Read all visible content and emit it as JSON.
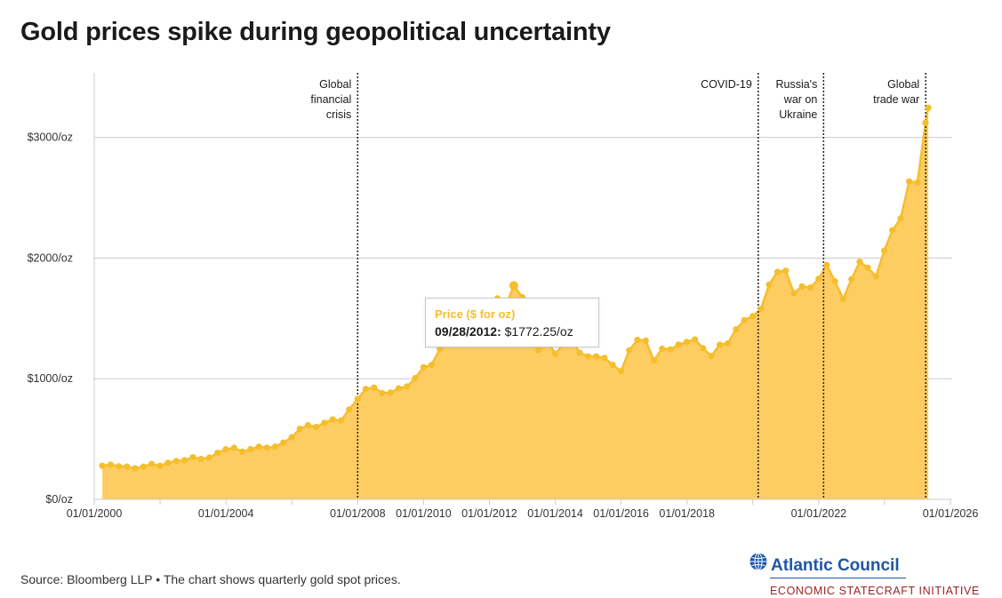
{
  "title": "Gold prices spike during geopolitical uncertainty",
  "tooltip": {
    "title": "Price ($ for oz)",
    "date": "09/28/2012:",
    "value": "$1772.25/oz"
  },
  "source": "Source: Bloomberg LLP • The chart shows quarterly gold spot prices.",
  "logo": {
    "name": "Atlantic Council",
    "initiative": "ECONOMIC STATECRAFT INITIATIVE"
  },
  "colors": {
    "area": "#fdcd62",
    "line": "#f6be2c",
    "grid": "#cccccc",
    "event_line": "#222222",
    "logo_blue": "#1f56a6",
    "logo_red": "#9b2226"
  },
  "chart_data": {
    "type": "area",
    "title": "Gold prices spike during geopolitical uncertainty",
    "xlabel": "",
    "ylabel": "",
    "x_axis": {
      "type": "date",
      "range": [
        "2000-01-01",
        "2026-01-01"
      ],
      "tick_labels": [
        "01/01/2000",
        "01/01/2004",
        "01/01/2008",
        "01/01/2010",
        "01/01/2012",
        "01/01/2014",
        "01/01/2016",
        "01/01/2018",
        "01/01/2022",
        "01/01/2026"
      ]
    },
    "y_axis": {
      "range": [
        0,
        3500
      ],
      "ticks": [
        0,
        1000,
        2000,
        3000
      ],
      "tick_labels": [
        "$0/oz",
        "$1000/oz",
        "$2000/oz",
        "$3000/oz"
      ]
    },
    "grid": "horizontal",
    "series": [
      {
        "name": "Price ($ for oz)",
        "x": [
          "2000-03-31",
          "2000-06-30",
          "2000-09-29",
          "2000-12-29",
          "2001-03-30",
          "2001-06-29",
          "2001-09-28",
          "2001-12-31",
          "2002-03-29",
          "2002-06-28",
          "2002-09-30",
          "2002-12-31",
          "2003-03-31",
          "2003-06-30",
          "2003-09-30",
          "2003-12-31",
          "2004-03-31",
          "2004-06-30",
          "2004-09-30",
          "2004-12-31",
          "2005-03-31",
          "2005-06-30",
          "2005-09-30",
          "2005-12-30",
          "2006-03-31",
          "2006-06-30",
          "2006-09-29",
          "2006-12-29",
          "2007-03-30",
          "2007-06-29",
          "2007-09-28",
          "2007-12-31",
          "2008-03-31",
          "2008-06-30",
          "2008-09-30",
          "2008-12-31",
          "2009-03-31",
          "2009-06-30",
          "2009-09-30",
          "2009-12-31",
          "2010-03-31",
          "2010-06-30",
          "2010-09-30",
          "2010-12-31",
          "2011-03-31",
          "2011-06-30",
          "2011-09-30",
          "2011-12-30",
          "2012-03-30",
          "2012-06-29",
          "2012-09-28",
          "2012-12-31",
          "2013-03-29",
          "2013-06-28",
          "2013-09-30",
          "2013-12-31",
          "2014-03-31",
          "2014-06-30",
          "2014-09-30",
          "2014-12-31",
          "2015-03-31",
          "2015-06-30",
          "2015-09-30",
          "2015-12-31",
          "2016-03-31",
          "2016-06-30",
          "2016-09-30",
          "2016-12-30",
          "2017-03-31",
          "2017-06-30",
          "2017-09-29",
          "2017-12-29",
          "2018-03-30",
          "2018-06-29",
          "2018-09-28",
          "2018-12-31",
          "2019-03-29",
          "2019-06-28",
          "2019-09-30",
          "2019-12-31",
          "2020-03-31",
          "2020-06-30",
          "2020-09-30",
          "2020-12-31",
          "2021-03-31",
          "2021-06-30",
          "2021-09-30",
          "2021-12-31",
          "2022-03-31",
          "2022-06-30",
          "2022-09-30",
          "2022-12-30",
          "2023-03-31",
          "2023-06-30",
          "2023-09-29",
          "2023-12-29",
          "2024-03-29",
          "2024-06-28",
          "2024-09-30",
          "2024-12-31",
          "2025-03-31",
          "2025-04-30"
        ],
        "values": [
          278,
          288,
          273,
          272,
          258,
          271,
          293,
          278,
          303,
          318,
          325,
          348,
          335,
          346,
          385,
          415,
          427,
          395,
          416,
          436,
          428,
          437,
          470,
          515,
          585,
          615,
          600,
          635,
          662,
          652,
          745,
          832,
          915,
          926,
          880,
          885,
          920,
          935,
          1005,
          1095,
          1115,
          1245,
          1310,
          1420,
          1440,
          1505,
          1620,
          1565,
          1665,
          1598,
          1772,
          1675,
          1595,
          1235,
          1325,
          1205,
          1285,
          1325,
          1215,
          1185,
          1185,
          1172,
          1115,
          1062,
          1235,
          1322,
          1315,
          1152,
          1248,
          1242,
          1282,
          1305,
          1325,
          1252,
          1188,
          1282,
          1292,
          1408,
          1485,
          1518,
          1578,
          1780,
          1885,
          1895,
          1710,
          1765,
          1755,
          1828,
          1942,
          1808,
          1662,
          1825,
          1968,
          1920,
          1848,
          2062,
          2230,
          2328,
          2635,
          2625,
          3122,
          3245
        ]
      }
    ],
    "events": [
      {
        "label": [
          "Global",
          "financial",
          "crisis"
        ],
        "date": "2008-01-01"
      },
      {
        "label": [
          "COVID-19"
        ],
        "date": "2020-03-01"
      },
      {
        "label": [
          "Russia's",
          "war on",
          "Ukraine"
        ],
        "date": "2022-02-24"
      },
      {
        "label": [
          "Global",
          "trade war"
        ],
        "date": "2025-04-02"
      }
    ],
    "highlight": {
      "date": "2012-09-28",
      "value": 1772.25
    },
    "legend": "none"
  }
}
